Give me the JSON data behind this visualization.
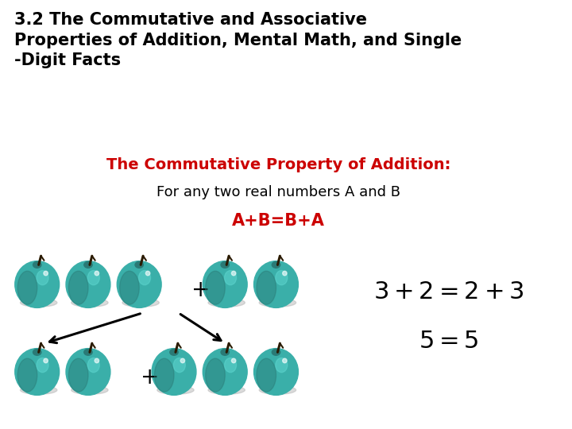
{
  "title_line1": "3.2 The Commutative and Associative",
  "title_line2": "Properties of Addition, Mental Math, and Single",
  "title_line3": "-Digit Facts",
  "subtitle": "The Commutative Property of Addition:",
  "subtitle_color": "#cc0000",
  "for_any_text": "For any two real numbers A and B",
  "formula": "A+B=B+A",
  "formula_color": "#cc0000",
  "bg_color": "#ffffff",
  "apple_color": "#3aafa9",
  "apple_dark": "#2a7a76",
  "apple_highlight": "#5dd5ce",
  "apple_shadow": "#b0b0b0",
  "apple_stem": "#2a1a00",
  "title_fontsize": 15,
  "subtitle_fontsize": 14,
  "body_fontsize": 13,
  "formula_fontsize": 15,
  "eq_fontsize": 22
}
